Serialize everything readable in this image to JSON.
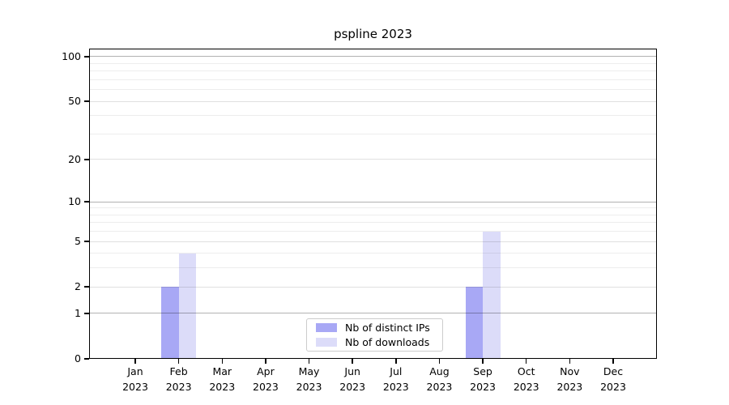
{
  "title": "pspline 2023",
  "chart_data": {
    "type": "bar",
    "title": "pspline 2023",
    "categories": [
      "Jan 2023",
      "Feb 2023",
      "Mar 2023",
      "Apr 2023",
      "May 2023",
      "Jun 2023",
      "Jul 2023",
      "Aug 2023",
      "Sep 2023",
      "Oct 2023",
      "Nov 2023",
      "Dec 2023"
    ],
    "series": [
      {
        "name": "Nb of distinct IPs",
        "color": "#a8a8f5",
        "values": [
          0,
          2,
          0,
          0,
          0,
          0,
          0,
          0,
          2,
          0,
          0,
          0
        ]
      },
      {
        "name": "Nb of downloads",
        "color": "#dcdcf9",
        "values": [
          0,
          4,
          0,
          0,
          0,
          0,
          0,
          0,
          6,
          0,
          0,
          0
        ]
      }
    ],
    "xlabel": "",
    "ylabel": "",
    "yscale": "log1p",
    "ytick_values": [
      0,
      1,
      2,
      5,
      10,
      20,
      50,
      100
    ],
    "ylim": [
      0,
      113
    ],
    "grid": true,
    "decade_gridlines": [
      1,
      10,
      100
    ],
    "minor_gridlines": [
      3,
      4,
      6,
      7,
      8,
      9,
      30,
      40,
      60,
      70,
      80,
      90
    ],
    "legend_position": "lower center inside plot"
  },
  "colors": {
    "background": "#ffffff",
    "spine": "#000000",
    "text": "#000000",
    "distinct_ips": "#a8a8f5",
    "downloads": "#dcdcf9",
    "decade_gridline": "rgba(0,0,0,0.30)",
    "major_gridline": "rgba(0,0,0,0.12)",
    "minor_gridline": "rgba(0,0,0,0.07)",
    "legend_border": "#cccccc"
  }
}
